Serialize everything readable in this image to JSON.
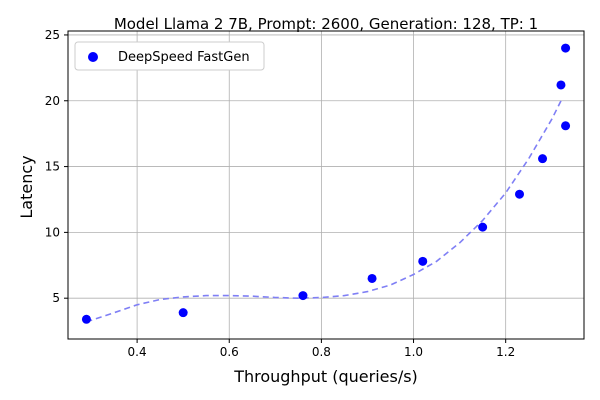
{
  "chart_data": {
    "type": "scatter",
    "title": "Model Llama 2 7B, Prompt: 2600, Generation: 128, TP: 1",
    "xlabel": "Throughput (queries/s)",
    "ylabel": "Latency",
    "xlim": [
      0.25,
      1.37
    ],
    "ylim": [
      1.9,
      25.3
    ],
    "xticks": [
      0.4,
      0.6,
      0.8,
      1.0,
      1.2
    ],
    "xtick_labels": [
      "0.4",
      "0.6",
      "0.8",
      "1.0",
      "1.2"
    ],
    "yticks": [
      5,
      10,
      15,
      20,
      25
    ],
    "ytick_labels": [
      "5",
      "10",
      "15",
      "20",
      "25"
    ],
    "grid": true,
    "legend_position": "top-left",
    "series": [
      {
        "name": "DeepSpeed FastGen",
        "color": "#0000ff",
        "marker": "circle",
        "points": [
          {
            "x": 0.29,
            "y": 3.4
          },
          {
            "x": 0.5,
            "y": 3.9
          },
          {
            "x": 0.76,
            "y": 5.2
          },
          {
            "x": 0.91,
            "y": 6.5
          },
          {
            "x": 1.02,
            "y": 7.8
          },
          {
            "x": 1.15,
            "y": 10.4
          },
          {
            "x": 1.23,
            "y": 12.9
          },
          {
            "x": 1.28,
            "y": 15.6
          },
          {
            "x": 1.32,
            "y": 21.2
          },
          {
            "x": 1.33,
            "y": 18.1
          },
          {
            "x": 1.33,
            "y": 24.0
          }
        ]
      }
    ],
    "trend_line": {
      "style": "dashed",
      "color": "#7f7ff5",
      "points": [
        {
          "x": 0.29,
          "y": 3.2
        },
        {
          "x": 0.35,
          "y": 3.9
        },
        {
          "x": 0.4,
          "y": 4.5
        },
        {
          "x": 0.45,
          "y": 4.9
        },
        {
          "x": 0.5,
          "y": 5.1
        },
        {
          "x": 0.55,
          "y": 5.2
        },
        {
          "x": 0.6,
          "y": 5.2
        },
        {
          "x": 0.65,
          "y": 5.15
        },
        {
          "x": 0.7,
          "y": 5.05
        },
        {
          "x": 0.75,
          "y": 5.0
        },
        {
          "x": 0.8,
          "y": 5.05
        },
        {
          "x": 0.85,
          "y": 5.2
        },
        {
          "x": 0.9,
          "y": 5.5
        },
        {
          "x": 0.95,
          "y": 6.0
        },
        {
          "x": 1.0,
          "y": 6.8
        },
        {
          "x": 1.05,
          "y": 7.8
        },
        {
          "x": 1.1,
          "y": 9.2
        },
        {
          "x": 1.15,
          "y": 10.9
        },
        {
          "x": 1.2,
          "y": 13.0
        },
        {
          "x": 1.25,
          "y": 15.6
        },
        {
          "x": 1.3,
          "y": 18.6
        },
        {
          "x": 1.32,
          "y": 20.0
        }
      ]
    }
  }
}
